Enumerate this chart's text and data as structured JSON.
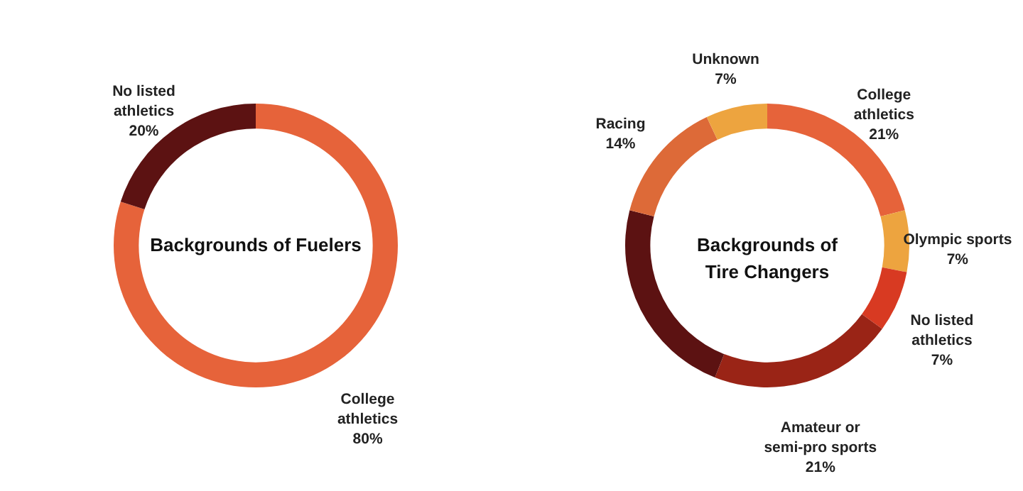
{
  "chart_data": [
    {
      "type": "donut",
      "title": "Backgrounds of Fuelers",
      "categories": [
        "College athletics",
        "No listed athletics"
      ],
      "values": [
        80,
        20
      ],
      "colors": [
        "#e6633a",
        "#5c1212"
      ],
      "value_labels": [
        "80%",
        "20%"
      ]
    },
    {
      "type": "donut",
      "title": "Backgrounds of\nTire Changers",
      "categories": [
        "College athletics",
        "Olympic sports",
        "No listed athletics",
        "Amateur or semi-pro sports",
        null,
        "Racing",
        "Unknown"
      ],
      "values": [
        21,
        7,
        7,
        21,
        23,
        14,
        7
      ],
      "colors": [
        "#e6633a",
        "#eda43f",
        "#d83a22",
        "#9a2416",
        "#5c1212",
        "#dd6a38",
        "#eda43f"
      ],
      "value_labels": [
        "21%",
        "7%",
        "7%",
        "21%",
        null,
        "14%",
        "7%"
      ]
    }
  ]
}
